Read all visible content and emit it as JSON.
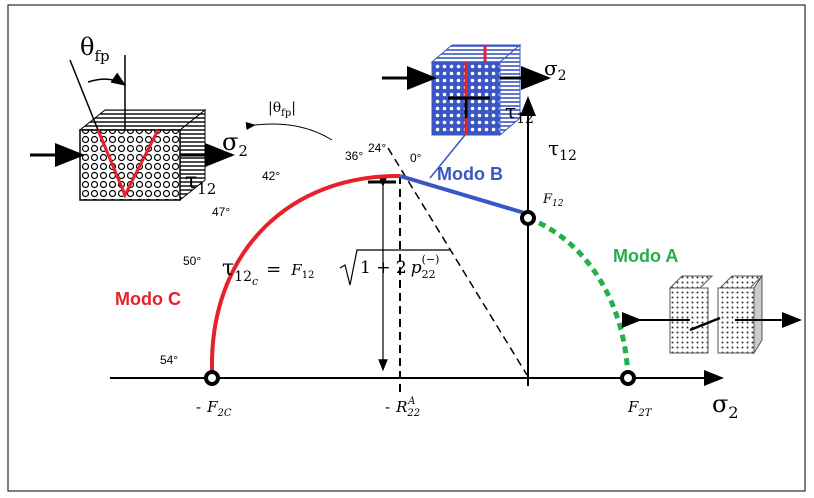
{
  "top_left_cube": {
    "angle": {
      "symbol": "θ",
      "sub": "fp"
    },
    "stress_normal": {
      "symbol": "σ",
      "sub": "2"
    },
    "stress_shear": {
      "symbol": "τ",
      "sub": "12"
    }
  },
  "top_cube": {
    "stress_normal": {
      "symbol": "σ",
      "sub": "2"
    },
    "stress_shear": {
      "symbol": "τ",
      "sub": "12"
    }
  },
  "rotation_label": {
    "open": "|θ",
    "sub": "fp",
    "close": "|"
  },
  "angles": [
    "36°",
    "24°",
    "0°",
    "42°",
    "47°",
    "50°",
    "54°"
  ],
  "modes": {
    "a": "Modo A",
    "b": "Modo B",
    "c": "Modo C"
  },
  "axes": {
    "x": {
      "symbol": "σ",
      "sub": "2"
    },
    "y": {
      "symbol": "τ",
      "sub": "12"
    }
  },
  "points": {
    "f12": {
      "symbol": "F",
      "sub": "12"
    },
    "f2c": {
      "prefix": "-",
      "symbol": "F",
      "sub": "2C"
    },
    "r22a": {
      "prefix": "-",
      "symbol": "R",
      "sub": "22",
      "sup": "A"
    },
    "f2t": {
      "symbol": "F",
      "sub": "2T"
    }
  },
  "formula": {
    "lhs": "τ",
    "lhs_sub": "12",
    "lhs_subsub": "c",
    "eq": "=",
    "f": "F",
    "f_sub": "12",
    "inner": "1 + 2",
    "p": "p",
    "p_sub": "22",
    "p_sup": "(−)"
  }
}
